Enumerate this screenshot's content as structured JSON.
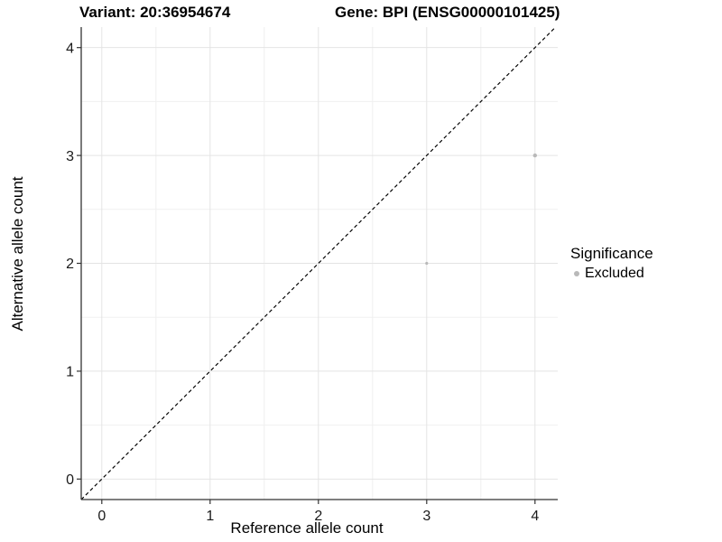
{
  "titles": {
    "variant": "Variant: 20:36954674",
    "gene": "Gene: BPI (ENSG00000101425)"
  },
  "legend": {
    "title": "Significance",
    "items": [
      {
        "label": "Excluded",
        "color": "#b9b9b9"
      }
    ]
  },
  "chart_data": {
    "type": "scatter",
    "xlabel": "Reference allele count",
    "ylabel": "Alternative allele count",
    "xticks": [
      0,
      1,
      2,
      3,
      4
    ],
    "yticks": [
      0,
      1,
      2,
      3,
      4
    ],
    "xlim": [
      -0.19,
      4.21
    ],
    "ylim": [
      -0.19,
      4.19
    ],
    "minor_step": 0.5,
    "grid": "major+minor",
    "legend_position": "right",
    "series": [
      {
        "name": "Excluded",
        "points": [
          {
            "x": 3,
            "y": 2,
            "radius_px": 1.6
          },
          {
            "x": 4,
            "y": 3,
            "radius_px": 2.2
          }
        ]
      }
    ],
    "identity_line": {
      "slope": 1,
      "intercept": 0,
      "style": "dashed"
    }
  },
  "colors": {
    "background": "#ffffff",
    "point": "#b9b9b9",
    "grid_major": "#e4e4e4",
    "grid_minor": "#f0f0f0",
    "axis_line": "#333333",
    "tick_mark": "#333333",
    "tick_label": "#1a1a1a",
    "identity_line": "#000000"
  }
}
